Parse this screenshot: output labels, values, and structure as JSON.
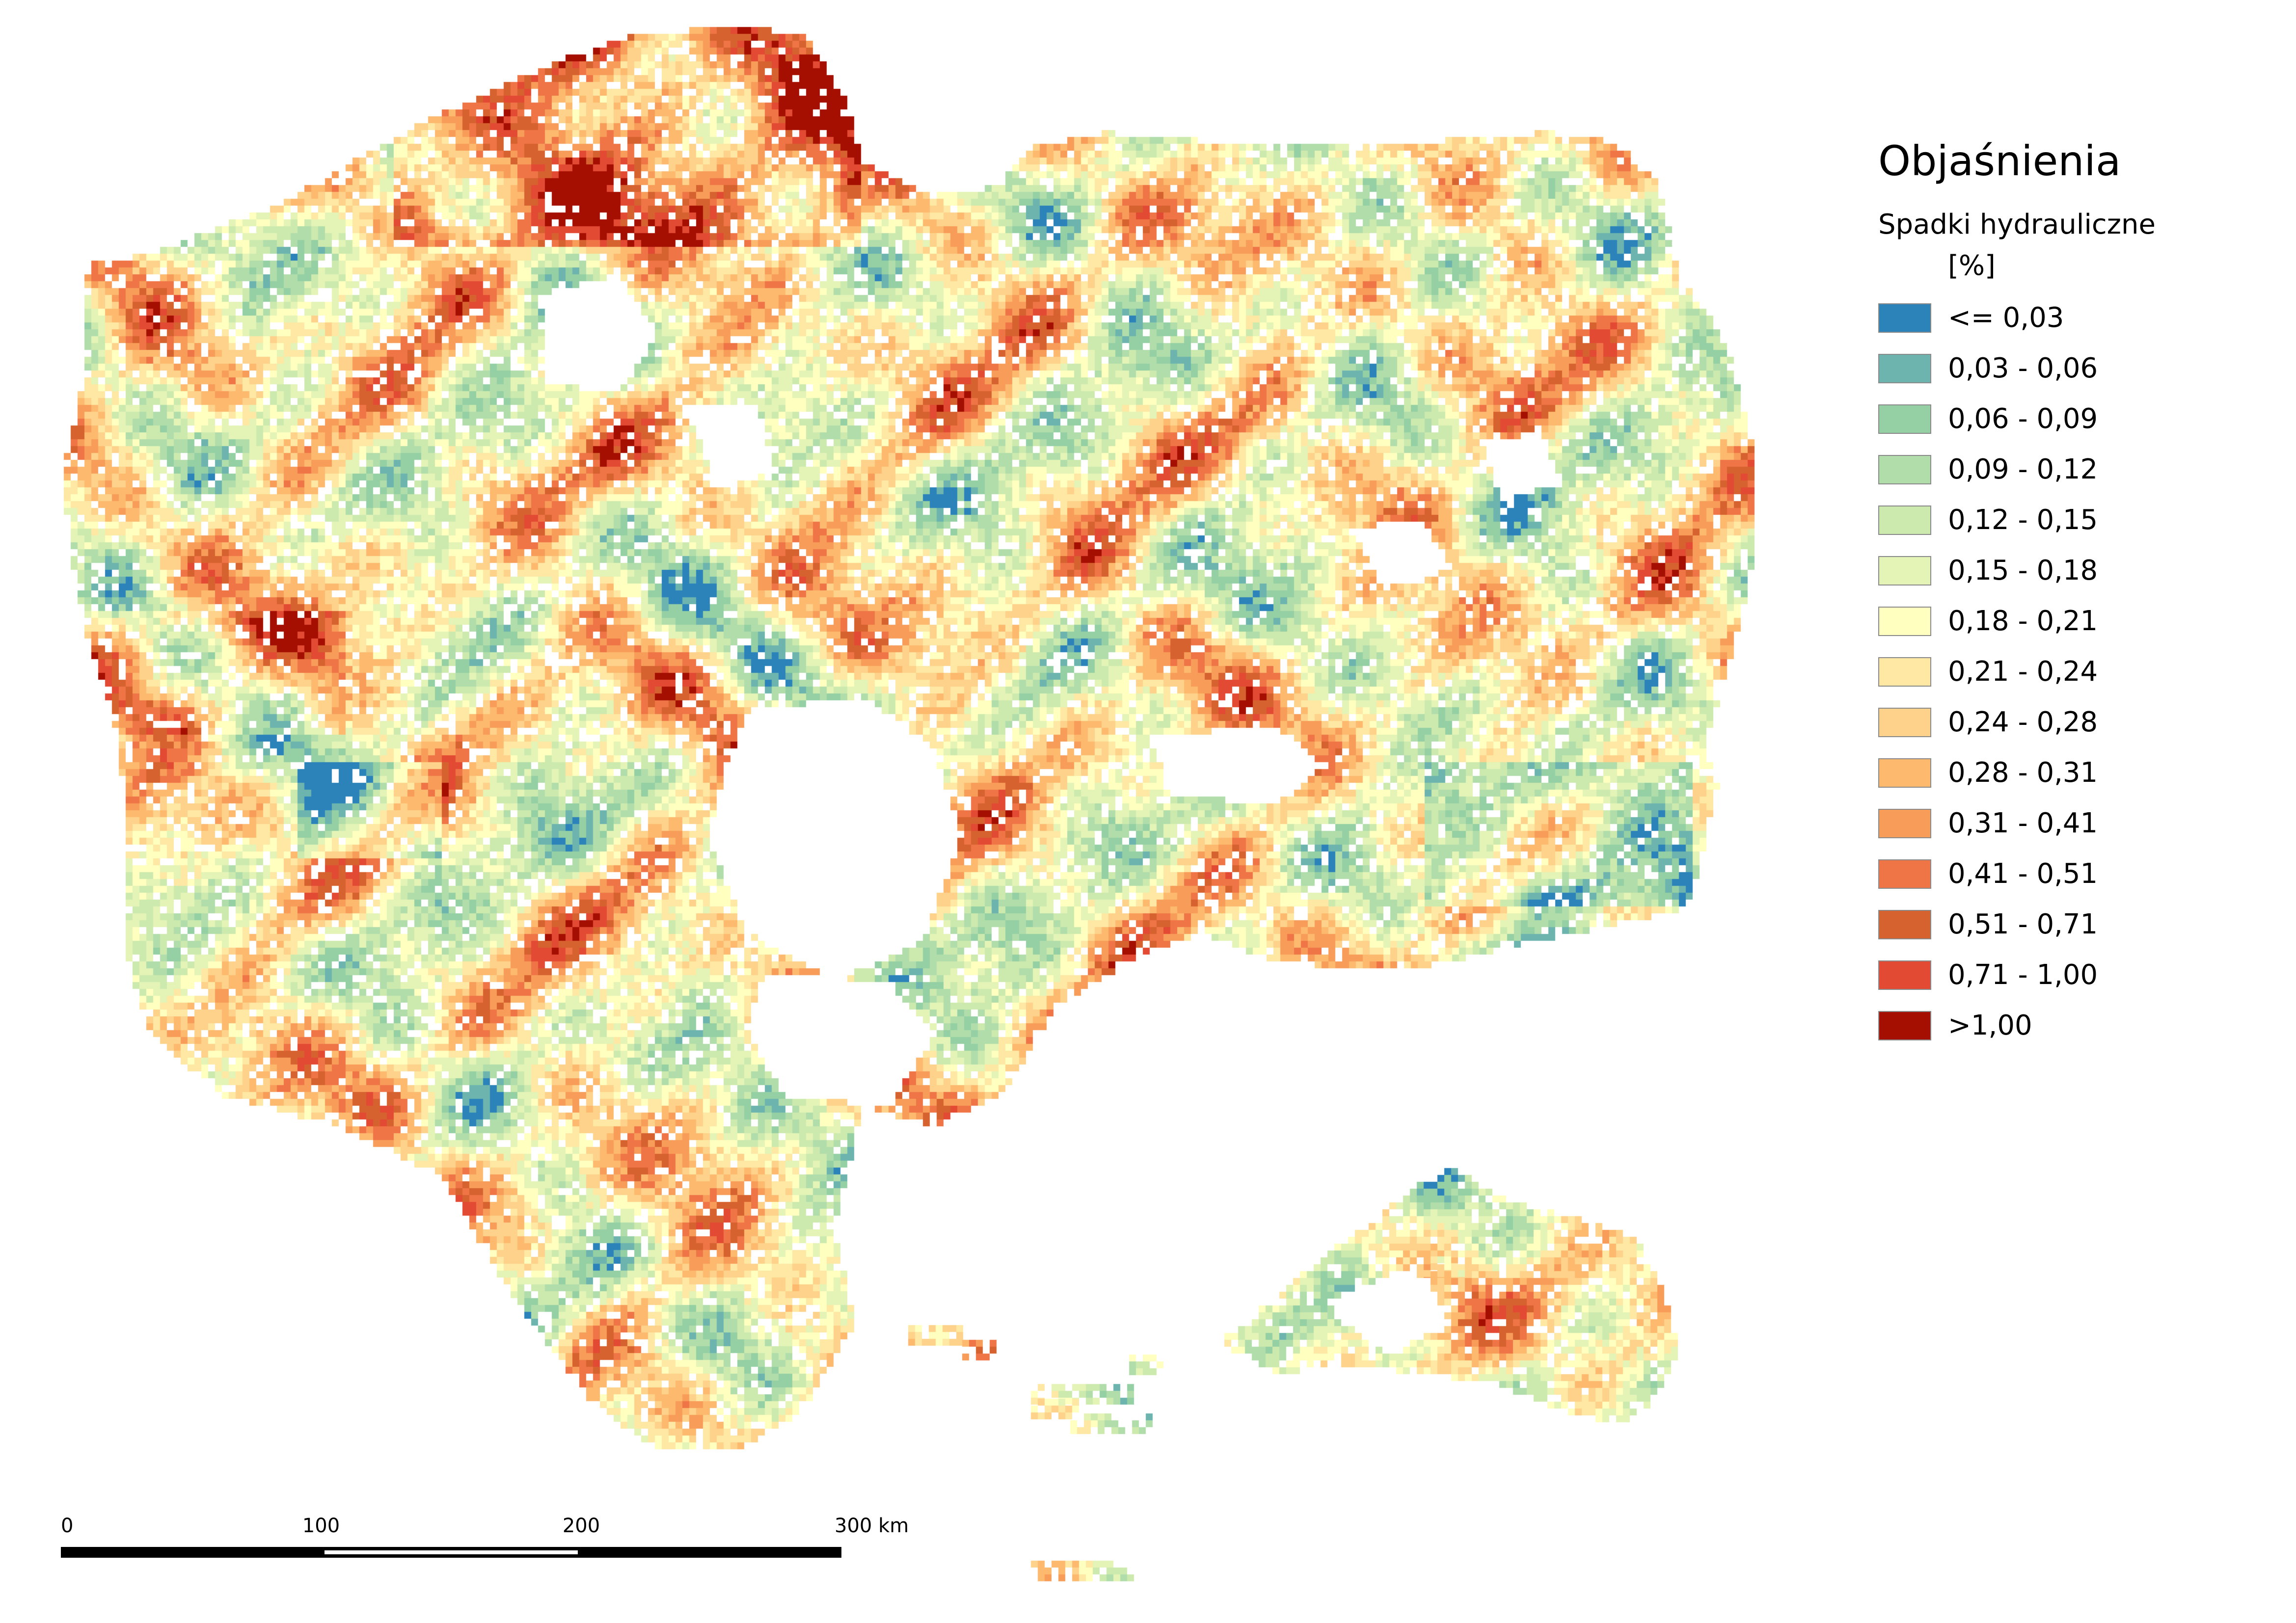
{
  "legend": {
    "title": "Objaśnienia",
    "subtitle": "Spadki hydrauliczne",
    "unit": "[%]",
    "classes": [
      {
        "label": "<= 0,03",
        "color": "#2b83ba"
      },
      {
        "label": "0,03 - 0,06",
        "color": "#6db4ae"
      },
      {
        "label": "0,06 - 0,09",
        "color": "#94d0a4"
      },
      {
        "label": "0,09 - 0,12",
        "color": "#b1ddab"
      },
      {
        "label": "0,12 - 0,15",
        "color": "#cdeaae"
      },
      {
        "label": "0,15 - 0,18",
        "color": "#e3f4b6"
      },
      {
        "label": "0,18 - 0,21",
        "color": "#ffffbf"
      },
      {
        "label": "0,21 - 0,24",
        "color": "#fee8a4"
      },
      {
        "label": "0,24 - 0,28",
        "color": "#fed28a"
      },
      {
        "label": "0,28 - 0,31",
        "color": "#fdba6f"
      },
      {
        "label": "0,31 - 0,41",
        "color": "#f89d59"
      },
      {
        "label": "0,41 - 0,51",
        "color": "#ef7547"
      },
      {
        "label": "0,51 - 0,71",
        "color": "#d6622f"
      },
      {
        "label": "0,71 - 1,00",
        "color": "#e34a33"
      },
      {
        "label": ">1,00",
        "color": "#a50f02"
      }
    ]
  },
  "scalebar": {
    "ticks": [
      "0",
      "100",
      "200",
      "300 km"
    ]
  }
}
